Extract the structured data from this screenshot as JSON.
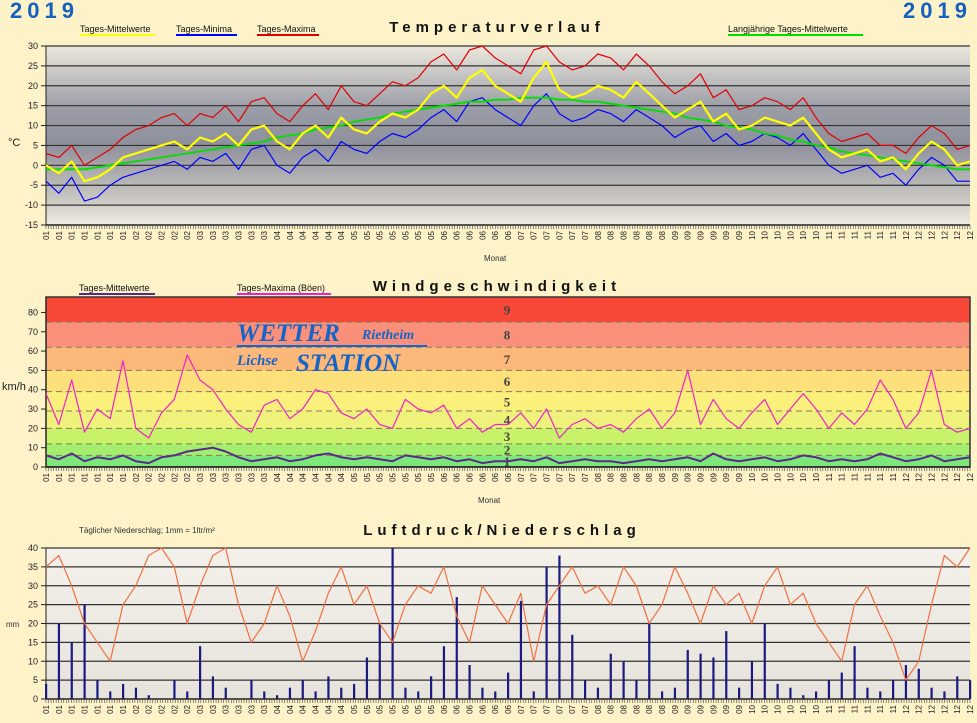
{
  "year": "2019",
  "month_ticks": [
    "01",
    "01",
    "01",
    "01",
    "01",
    "01",
    "01",
    "02",
    "02",
    "02",
    "02",
    "02",
    "03",
    "03",
    "03",
    "03",
    "03",
    "03",
    "04",
    "04",
    "04",
    "04",
    "04",
    "04",
    "05",
    "05",
    "05",
    "05",
    "05",
    "05",
    "05",
    "06",
    "06",
    "06",
    "06",
    "06",
    "06",
    "07",
    "07",
    "07",
    "07",
    "07",
    "07",
    "08",
    "08",
    "08",
    "08",
    "08",
    "08",
    "09",
    "09",
    "09",
    "09",
    "09",
    "09",
    "10",
    "10",
    "10",
    "10",
    "10",
    "10",
    "11",
    "11",
    "11",
    "11",
    "11",
    "11",
    "12",
    "12",
    "12",
    "12",
    "12",
    "12"
  ],
  "colors": {
    "mean": "#ffff00",
    "min": "#0000ff",
    "max": "#e00000",
    "longterm": "#00e000",
    "wind_mean": "#5a2a8a",
    "wind_gust": "#ee22cc",
    "pressure": "#f07040",
    "precip": "#1a1a80"
  },
  "chart_data": [
    {
      "type": "line",
      "title": "Temperaturverlauf",
      "xlabel": "Monat",
      "ylabel": "°C",
      "ylim": [
        -15,
        30
      ],
      "yticks": [
        "30",
        "25",
        "20",
        "15",
        "10",
        "5",
        "0",
        "-5",
        "-10",
        "-15"
      ],
      "legend": [
        "Tages-Mittelwerte",
        "Tages-Minima",
        "Tages-Maxima",
        "Langjährige Tages-Mittelwerte"
      ],
      "series": [
        {
          "name": "Tages-Mittelwerte",
          "values": [
            0,
            -2,
            1,
            -4,
            -3,
            -1,
            2,
            3,
            4,
            5,
            6,
            4,
            7,
            6,
            8,
            5,
            9,
            10,
            6,
            4,
            8,
            10,
            7,
            12,
            9,
            8,
            11,
            13,
            12,
            14,
            18,
            20,
            17,
            22,
            24,
            20,
            18,
            16,
            22,
            26,
            19,
            17,
            18,
            20,
            19,
            17,
            21,
            18,
            15,
            12,
            14,
            16,
            11,
            13,
            9,
            10,
            12,
            11,
            10,
            12,
            8,
            4,
            2,
            3,
            4,
            1,
            2,
            -1,
            3,
            6,
            4,
            0,
            1
          ]
        },
        {
          "name": "Tages-Minima",
          "values": [
            -4,
            -7,
            -3,
            -9,
            -8,
            -5,
            -3,
            -2,
            -1,
            0,
            1,
            -1,
            2,
            1,
            3,
            -1,
            4,
            5,
            0,
            -2,
            2,
            4,
            1,
            6,
            4,
            3,
            6,
            8,
            7,
            9,
            12,
            14,
            11,
            16,
            17,
            14,
            12,
            10,
            15,
            18,
            13,
            11,
            12,
            14,
            13,
            11,
            14,
            12,
            10,
            7,
            9,
            10,
            6,
            8,
            5,
            6,
            8,
            7,
            5,
            8,
            4,
            0,
            -2,
            -1,
            0,
            -3,
            -2,
            -5,
            -1,
            2,
            0,
            -4,
            -4
          ]
        },
        {
          "name": "Tages-Maxima",
          "values": [
            3,
            2,
            5,
            0,
            2,
            4,
            7,
            9,
            10,
            12,
            13,
            10,
            13,
            12,
            15,
            11,
            16,
            17,
            13,
            11,
            15,
            18,
            14,
            20,
            16,
            15,
            18,
            21,
            20,
            22,
            26,
            28,
            24,
            29,
            30,
            27,
            25,
            23,
            29,
            30,
            26,
            24,
            25,
            28,
            27,
            24,
            28,
            25,
            21,
            18,
            20,
            23,
            17,
            19,
            14,
            15,
            17,
            16,
            14,
            17,
            12,
            8,
            6,
            7,
            8,
            5,
            5,
            3,
            7,
            10,
            8,
            4,
            5
          ]
        },
        {
          "name": "Langjährige Tages-Mittelwerte",
          "values": [
            -1,
            -1,
            -1,
            -1,
            -0.5,
            0,
            0.5,
            1,
            1.5,
            2,
            2.5,
            3,
            3.5,
            4,
            4.5,
            5,
            5.5,
            6,
            7,
            7.5,
            8,
            9,
            9.5,
            10,
            11,
            11.5,
            12,
            13,
            13.5,
            14,
            14.5,
            15,
            15.5,
            16,
            16,
            16.5,
            16.5,
            17,
            17,
            17,
            16.5,
            16.5,
            16,
            16,
            15.5,
            15,
            14.5,
            14,
            13.5,
            13,
            12,
            11.5,
            11,
            10,
            9.5,
            9,
            8,
            7.5,
            6.5,
            6,
            5,
            4.5,
            3.5,
            3,
            2.5,
            2,
            1.5,
            1,
            0.5,
            0,
            -0.5,
            -1,
            -1
          ]
        }
      ]
    },
    {
      "type": "line",
      "title": "Windgeschwindigkeit",
      "xlabel": "Monat",
      "ylabel": "km/h",
      "ylim": [
        0,
        88
      ],
      "yticks": [
        "80",
        "70",
        "60",
        "50",
        "40",
        "30",
        "20",
        "10",
        "0"
      ],
      "legend": [
        "Tages-Mittelwerte",
        "Tages-Maxima (Böen)"
      ],
      "beaufort_bands": [
        {
          "bft": "1",
          "from": 0,
          "to": 6,
          "color": "#7de87a"
        },
        {
          "bft": "2",
          "from": 6,
          "to": 12,
          "color": "#a4ee6e"
        },
        {
          "bft": "3",
          "from": 12,
          "to": 20,
          "color": "#c8f26a"
        },
        {
          "bft": "4",
          "from": 20,
          "to": 29,
          "color": "#eef27a"
        },
        {
          "bft": "5",
          "from": 29,
          "to": 39,
          "color": "#fbf07c"
        },
        {
          "bft": "6",
          "from": 39,
          "to": 50,
          "color": "#fde07a"
        },
        {
          "bft": "7",
          "from": 50,
          "to": 62,
          "color": "#fcb878"
        },
        {
          "bft": "8",
          "from": 62,
          "to": 75,
          "color": "#fa907a"
        },
        {
          "bft": "9",
          "from": 75,
          "to": 88,
          "color": "#f84838"
        }
      ],
      "series": [
        {
          "name": "Tages-Mittelwerte",
          "values": [
            6,
            4,
            7,
            3,
            5,
            4,
            6,
            3,
            2,
            5,
            6,
            8,
            9,
            10,
            8,
            5,
            3,
            4,
            5,
            3,
            4,
            6,
            7,
            5,
            4,
            5,
            4,
            3,
            6,
            5,
            4,
            5,
            3,
            4,
            2,
            3,
            3,
            4,
            3,
            5,
            2,
            3,
            4,
            3,
            3,
            2,
            3,
            4,
            3,
            4,
            5,
            3,
            7,
            4,
            3,
            4,
            5,
            3,
            4,
            6,
            5,
            3,
            4,
            3,
            4,
            7,
            5,
            3,
            4,
            6,
            3,
            4,
            5
          ]
        },
        {
          "name": "Tages-Maxima (Böen)",
          "values": [
            38,
            22,
            45,
            18,
            30,
            25,
            55,
            20,
            15,
            28,
            35,
            58,
            45,
            40,
            30,
            22,
            18,
            32,
            35,
            25,
            30,
            40,
            38,
            28,
            25,
            30,
            22,
            20,
            35,
            30,
            28,
            32,
            20,
            25,
            18,
            22,
            22,
            28,
            20,
            30,
            15,
            22,
            25,
            20,
            22,
            18,
            25,
            30,
            20,
            28,
            50,
            22,
            35,
            25,
            20,
            28,
            35,
            22,
            30,
            38,
            30,
            20,
            28,
            22,
            30,
            45,
            35,
            20,
            28,
            50,
            22,
            18,
            20
          ]
        }
      ]
    },
    {
      "type": "bar",
      "title": "Luftdruck/Niederschlag",
      "subtitle": "Täglicher Niederschlag; 1mm = 1ltr/m²",
      "ylabel": "mm",
      "ylim": [
        0,
        40
      ],
      "yticks": [
        "40",
        "35",
        "30",
        "25",
        "20",
        "15",
        "10",
        "5",
        "0"
      ],
      "series": [
        {
          "name": "Niederschlag",
          "values": [
            4,
            20,
            15,
            25,
            5,
            2,
            4,
            3,
            1,
            0,
            5,
            2,
            14,
            6,
            3,
            0,
            5,
            2,
            1,
            3,
            5,
            2,
            6,
            3,
            4,
            11,
            20,
            40,
            3,
            2,
            6,
            14,
            27,
            9,
            3,
            2,
            7,
            26,
            2,
            35,
            38,
            17,
            5,
            3,
            12,
            10,
            5,
            20,
            2,
            3,
            13,
            12,
            11,
            18,
            3,
            10,
            20,
            4,
            3,
            1,
            2,
            5,
            7,
            14,
            3,
            2,
            5,
            9,
            8,
            3,
            2,
            6,
            5
          ]
        },
        {
          "name": "Luftdruck",
          "values": [
            35,
            38,
            30,
            20,
            15,
            10,
            25,
            30,
            38,
            40,
            35,
            20,
            30,
            38,
            40,
            25,
            15,
            20,
            30,
            22,
            10,
            18,
            28,
            35,
            25,
            30,
            20,
            15,
            25,
            30,
            28,
            35,
            22,
            15,
            30,
            25,
            20,
            28,
            10,
            25,
            30,
            35,
            28,
            30,
            25,
            35,
            30,
            20,
            25,
            35,
            28,
            20,
            30,
            25,
            28,
            20,
            30,
            35,
            25,
            28,
            20,
            15,
            10,
            25,
            30,
            22,
            15,
            5,
            10,
            25,
            38,
            35,
            40
          ]
        }
      ]
    }
  ],
  "logo": {
    "line1": "WETTER",
    "line1b": "Rietheim",
    "line2a": "Lichse",
    "line2b": "STATION"
  }
}
